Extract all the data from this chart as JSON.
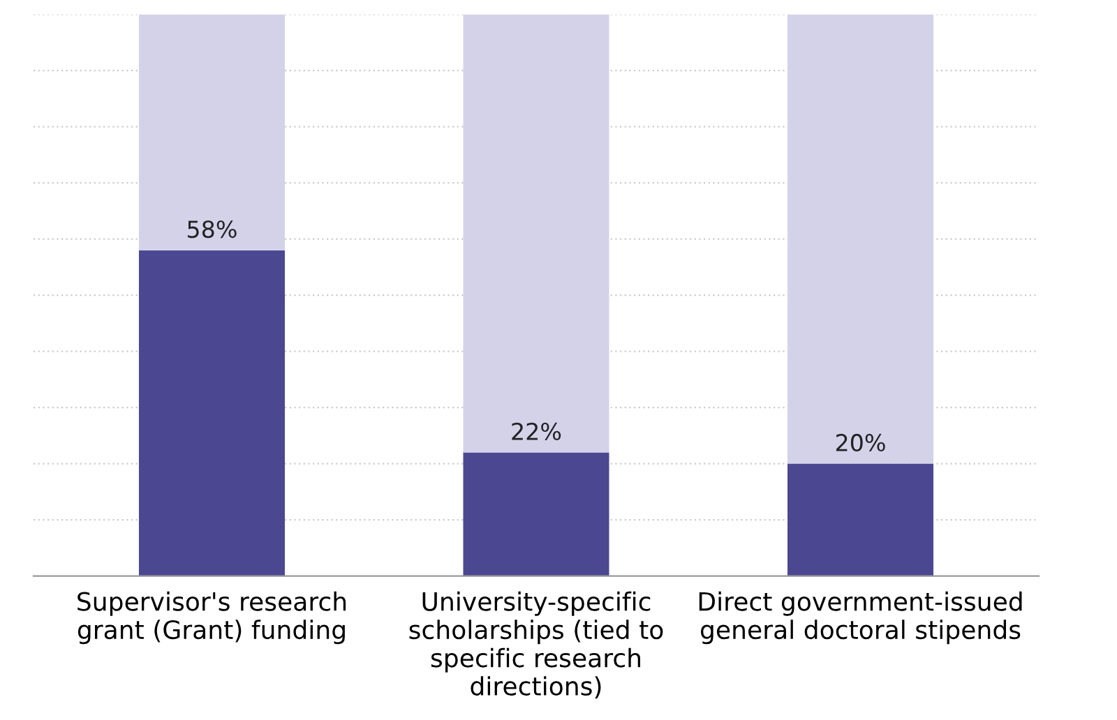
{
  "chart_data": {
    "type": "bar",
    "stacked": true,
    "categories": [
      "Supervisor's research\ngrant (Grant) funding",
      "University-specific\nscholarships (tied to\nspecific research\ndirections)",
      "Direct government-issued\ngeneral doctoral stipends"
    ],
    "series": [
      {
        "color": "#4b4891",
        "values": [
          58,
          22,
          20
        ],
        "value_labels": [
          "58%",
          "22%",
          "20%"
        ]
      },
      {
        "color": "#d4d2e9",
        "values": [
          42,
          78,
          80
        ]
      }
    ],
    "ylim": [
      0,
      100
    ],
    "yticks": [
      {
        "value": 10,
        "label": null
      },
      {
        "value": 20,
        "label": null
      },
      {
        "value": 30,
        "label": null
      },
      {
        "value": 40,
        "label": null
      },
      {
        "value": 50,
        "label": null
      },
      {
        "value": 60,
        "label": null
      },
      {
        "value": 70,
        "label": null
      },
      {
        "value": 80,
        "label": null
      },
      {
        "value": 90,
        "label": null
      },
      {
        "value": 100,
        "label": null
      }
    ],
    "grid": "y",
    "tick_labels": "x"
  }
}
